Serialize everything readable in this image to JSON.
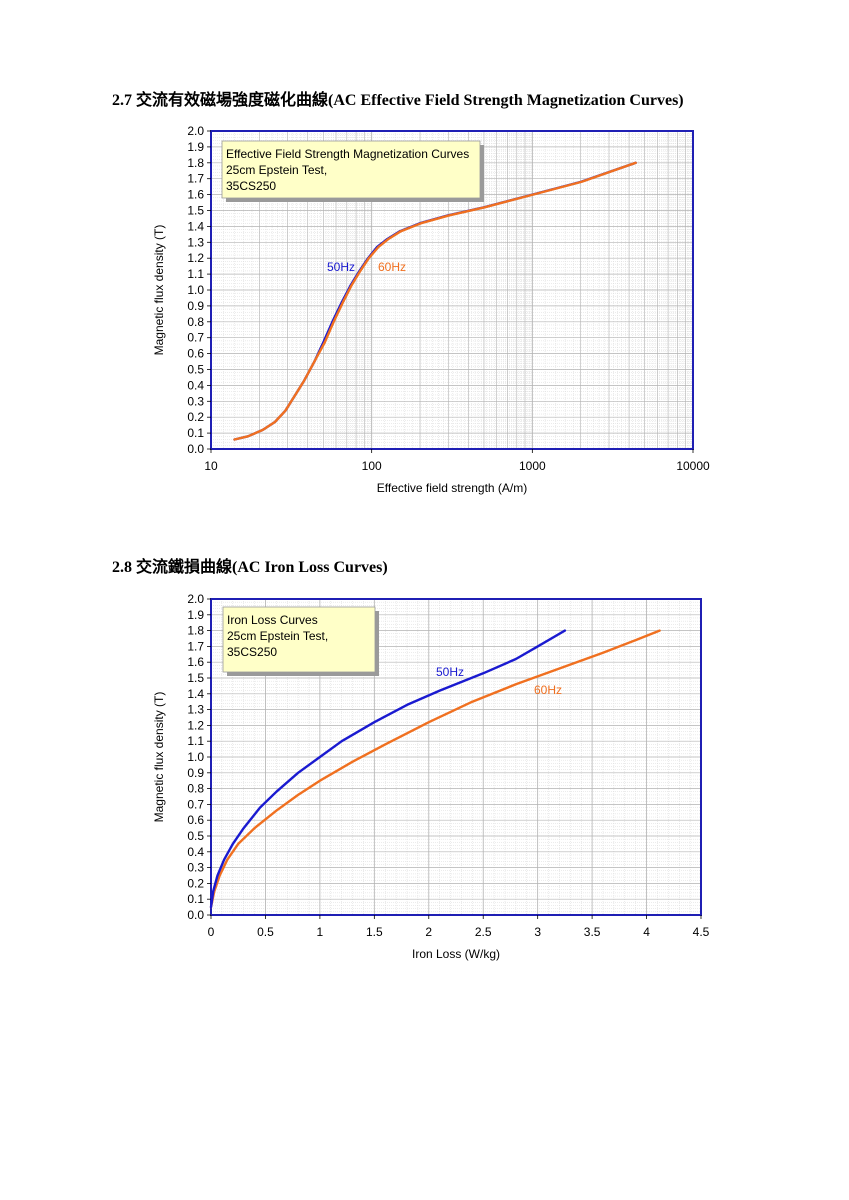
{
  "headings": {
    "sec1": "2.7  交流有效磁場強度磁化曲線(AC Effective Field Strength Magnetization Curves)",
    "sec2": "2.8  交流鐵損曲線(AC Iron Loss Curves)"
  },
  "colors": {
    "frame": "#1f1fb4",
    "series_50hz": "#1a1ad0",
    "series_60hz": "#f07020",
    "note_bg": "#ffffc8",
    "grid": "#b4b4b4"
  },
  "chart_data": [
    {
      "type": "line",
      "x_scale": "log",
      "xlabel": "Effective field strength (A/m)",
      "ylabel": "Magnetic flux density (T)",
      "xlim": [
        10,
        10000
      ],
      "ylim": [
        0,
        2.0
      ],
      "x_ticks": [
        "10",
        "100",
        "1000",
        "10000"
      ],
      "y_ticks": [
        "0.0",
        "0.1",
        "0.2",
        "0.3",
        "0.4",
        "0.5",
        "0.6",
        "0.7",
        "0.8",
        "0.9",
        "1.0",
        "1.1",
        "1.2",
        "1.3",
        "1.4",
        "1.5",
        "1.6",
        "1.7",
        "1.8",
        "1.9",
        "2.0"
      ],
      "grid": true,
      "annotation": [
        "Effective Field Strength Magnetization Curves",
        "25cm Epstein Test,",
        "35CS250"
      ],
      "series": [
        {
          "name": "50Hz",
          "x": [
            14,
            17,
            21,
            25,
            29,
            33,
            38,
            44,
            50,
            57,
            65,
            74,
            84,
            95,
            108,
            125,
            150,
            200,
            300,
            500,
            1000,
            2000,
            4400
          ],
          "y": [
            0.06,
            0.08,
            0.12,
            0.17,
            0.24,
            0.33,
            0.43,
            0.55,
            0.67,
            0.8,
            0.92,
            1.03,
            1.12,
            1.2,
            1.27,
            1.32,
            1.37,
            1.42,
            1.47,
            1.52,
            1.6,
            1.68,
            1.8
          ]
        },
        {
          "name": "60Hz",
          "x": [
            14,
            17,
            21,
            25,
            29,
            33,
            38,
            44,
            51,
            58,
            66,
            75,
            85,
            96,
            110,
            127,
            152,
            203,
            305,
            505,
            1010,
            2020,
            4400
          ],
          "y": [
            0.06,
            0.08,
            0.12,
            0.17,
            0.24,
            0.33,
            0.43,
            0.55,
            0.67,
            0.8,
            0.92,
            1.03,
            1.12,
            1.2,
            1.27,
            1.32,
            1.37,
            1.42,
            1.47,
            1.52,
            1.6,
            1.68,
            1.8
          ]
        }
      ]
    },
    {
      "type": "line",
      "xlabel": "Iron Loss (W/kg)",
      "ylabel": "Magnetic flux density (T)",
      "xlim": [
        0,
        4.5
      ],
      "ylim": [
        0,
        2.0
      ],
      "x_ticks": [
        "0",
        "0.5",
        "1",
        "1.5",
        "2",
        "2.5",
        "3",
        "3.5",
        "4",
        "4.5"
      ],
      "y_ticks": [
        "0.0",
        "0.1",
        "0.2",
        "0.3",
        "0.4",
        "0.5",
        "0.6",
        "0.7",
        "0.8",
        "0.9",
        "1.0",
        "1.1",
        "1.2",
        "1.3",
        "1.4",
        "1.5",
        "1.6",
        "1.7",
        "1.8",
        "1.9",
        "2.0"
      ],
      "grid": true,
      "annotation": [
        "Iron Loss Curves",
        "25cm Epstein Test,",
        "35CS250"
      ],
      "series": [
        {
          "name": "50Hz",
          "x": [
            0,
            0.02,
            0.06,
            0.12,
            0.2,
            0.3,
            0.45,
            0.6,
            0.8,
            1.0,
            1.2,
            1.5,
            1.8,
            2.1,
            2.5,
            2.8,
            3.0,
            3.25
          ],
          "y": [
            0.05,
            0.15,
            0.25,
            0.35,
            0.45,
            0.55,
            0.68,
            0.78,
            0.9,
            1.0,
            1.1,
            1.22,
            1.33,
            1.42,
            1.53,
            1.62,
            1.7,
            1.8
          ]
        },
        {
          "name": "60Hz",
          "x": [
            0,
            0.03,
            0.08,
            0.15,
            0.25,
            0.4,
            0.6,
            0.8,
            1.0,
            1.3,
            1.6,
            2.0,
            2.4,
            2.8,
            3.2,
            3.6,
            3.9,
            4.12
          ],
          "y": [
            0.05,
            0.15,
            0.25,
            0.35,
            0.45,
            0.55,
            0.66,
            0.76,
            0.85,
            0.97,
            1.08,
            1.22,
            1.35,
            1.46,
            1.56,
            1.66,
            1.74,
            1.8
          ]
        }
      ]
    }
  ]
}
